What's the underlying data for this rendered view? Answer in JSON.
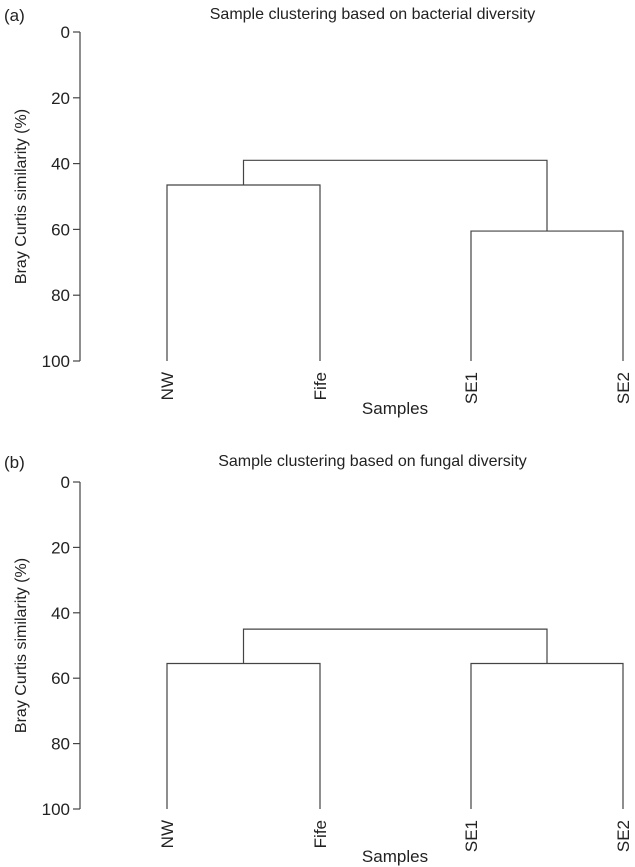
{
  "chart_data": [
    {
      "type": "dendrogram",
      "panel_label": "(a)",
      "title": "Sample clustering based on bacterial diversity",
      "xlabel": "Samples",
      "ylabel": "Bray Curtis similarity (%)",
      "ylim": [
        0,
        100
      ],
      "yticks": [
        0,
        20,
        40,
        60,
        80,
        100
      ],
      "leaves": [
        "NW",
        "Fife",
        "SE1",
        "SE2"
      ],
      "merges": [
        {
          "left": "NW",
          "right": "Fife",
          "similarity": 46.5
        },
        {
          "left": "SE1",
          "right": "SE2",
          "similarity": 60.5
        },
        {
          "left": "NW+Fife",
          "right": "SE1+SE2",
          "similarity": 39
        }
      ]
    },
    {
      "type": "dendrogram",
      "panel_label": "(b)",
      "title": "Sample clustering based on fungal diversity",
      "xlabel": "Samples",
      "ylabel": "Bray Curtis similarity (%)",
      "ylim": [
        0,
        100
      ],
      "yticks": [
        0,
        20,
        40,
        60,
        80,
        100
      ],
      "leaves": [
        "NW",
        "Fife",
        "SE1",
        "SE2"
      ],
      "merges": [
        {
          "left": "NW",
          "right": "Fife",
          "similarity": 55.5
        },
        {
          "left": "SE1",
          "right": "SE2",
          "similarity": 55.5
        },
        {
          "left": "NW+Fife",
          "right": "SE1+SE2",
          "similarity": 45
        }
      ]
    }
  ]
}
